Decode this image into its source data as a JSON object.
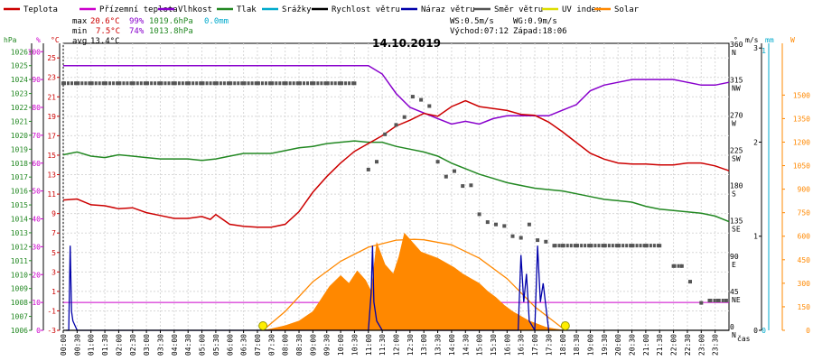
{
  "chart_data": {
    "type": "line",
    "title": "14.10.2019",
    "legend": [
      {
        "label": "Teplota",
        "color": "#cc0000"
      },
      {
        "label": "Přízemní teplota",
        "color": "#cc00cc"
      },
      {
        "label": "Vlhkost",
        "color": "#8800cc"
      },
      {
        "label": "Tlak",
        "color": "#228822"
      },
      {
        "label": "Srážky",
        "color": "#00aacc"
      },
      {
        "label": "Rychlost větru",
        "color": "#000000"
      },
      {
        "label": "Náraz větru",
        "color": "#0000aa"
      },
      {
        "label": "Směr větru",
        "color": "#555555"
      },
      {
        "label": "UV index",
        "color": "#dddd00"
      },
      {
        "label": "Solar",
        "color": "#ff8800"
      }
    ],
    "stats": {
      "max_label": "max",
      "max_temp": "20.6°C",
      "max_hum": "99%",
      "max_press": "1019.6hPa",
      "rain": "0.0mm",
      "min_label": "min",
      "min_temp": "7.5°C",
      "min_hum": "74%",
      "min_press": "1013.8hPa",
      "avg_label": "avg",
      "avg_temp": "13.4°C",
      "ws": "WS:0.5m/s",
      "wg": "WG:0.9m/s",
      "sunrise": "Východ:07:12",
      "sunset": "Západ:18:06"
    },
    "axis_units": {
      "pressure": "hPa",
      "humidity": "%",
      "temperature": "°C",
      "wind_dir": "°",
      "wind_speed": "m/s",
      "rain": "mm",
      "solar": "W",
      "x": "čas"
    },
    "pressure_ticks": [
      1006,
      1007,
      1008,
      1009,
      1010,
      1011,
      1012,
      1013,
      1014,
      1015,
      1016,
      1017,
      1018,
      1019,
      1020,
      1021,
      1022,
      1023,
      1024,
      1025,
      1026
    ],
    "humidity_ticks": [
      0,
      10,
      20,
      30,
      40,
      50,
      60,
      70,
      80,
      90,
      100
    ],
    "temp_ticks": [
      -3,
      -1,
      1,
      3,
      5,
      7,
      9,
      11,
      13,
      15,
      17,
      19,
      21,
      23,
      25
    ],
    "dir_ticks": [
      {
        "v": 0,
        "deg": "0",
        "label": "N"
      },
      {
        "v": 45,
        "deg": "45",
        "label": "NE"
      },
      {
        "v": 90,
        "deg": "90",
        "label": "E"
      },
      {
        "v": 135,
        "deg": "135",
        "label": "SE"
      },
      {
        "v": 180,
        "deg": "180",
        "label": "S"
      },
      {
        "v": 225,
        "deg": "225",
        "label": "SW"
      },
      {
        "v": 270,
        "deg": "270",
        "label": "W"
      },
      {
        "v": 315,
        "deg": "315",
        "label": "NW"
      },
      {
        "v": 360,
        "deg": "360",
        "label": "N"
      }
    ],
    "speed_ticks": [
      0,
      1,
      2,
      3
    ],
    "rain_ticks": [
      0,
      1
    ],
    "solar_ticks": [
      0,
      150,
      300,
      450,
      600,
      750,
      900,
      1050,
      1200,
      1350,
      1500
    ],
    "x_ticks": [
      "00:00",
      "00:30",
      "01:00",
      "01:30",
      "02:00",
      "02:30",
      "03:00",
      "03:30",
      "04:00",
      "04:30",
      "05:00",
      "05:30",
      "06:00",
      "06:30",
      "07:00",
      "07:30",
      "08:00",
      "08:30",
      "09:00",
      "09:30",
      "10:00",
      "10:30",
      "11:00",
      "11:30",
      "12:00",
      "12:30",
      "13:00",
      "13:30",
      "14:00",
      "14:30",
      "15:00",
      "15:30",
      "16:00",
      "16:30",
      "17:00",
      "17:30",
      "18:00",
      "18:30",
      "19:00",
      "19:30",
      "20:00",
      "20:30",
      "21:00",
      "21:30",
      "22:00",
      "22:30",
      "23:00",
      "23:30"
    ],
    "ranges": {
      "temp": [
        -3,
        26.5
      ],
      "humidity": [
        0,
        103
      ],
      "pressure": [
        1006,
        1026.6
      ],
      "dir": [
        0,
        366
      ],
      "speed": [
        0,
        3.05
      ],
      "solar": [
        0,
        1830
      ],
      "x_hours": [
        0,
        24
      ]
    },
    "sun_markers": [
      7.2,
      18.1
    ],
    "series": [
      {
        "name": "Teplota",
        "color": "#cc0000",
        "x": [
          0,
          0.5,
          1,
          1.5,
          2,
          2.5,
          3,
          3.5,
          4,
          4.5,
          5,
          5.3,
          5.5,
          6,
          6.5,
          7,
          7.5,
          8,
          8.5,
          9,
          9.5,
          10,
          10.5,
          11,
          11.5,
          12,
          12.5,
          13,
          13.5,
          14,
          14.5,
          15,
          15.5,
          16,
          16.5,
          17,
          17.5,
          18,
          18.5,
          19,
          19.5,
          20,
          20.5,
          21,
          21.5,
          22,
          22.5,
          23,
          23.5,
          24
        ],
        "y": [
          10.4,
          10.5,
          9.9,
          9.8,
          9.5,
          9.6,
          9.1,
          8.8,
          8.5,
          8.5,
          8.7,
          8.4,
          8.9,
          7.9,
          7.7,
          7.6,
          7.6,
          7.9,
          9.2,
          11.2,
          12.8,
          14.2,
          15.4,
          16.2,
          17.0,
          18.0,
          18.6,
          19.3,
          19.0,
          20.0,
          20.6,
          20.0,
          19.8,
          19.6,
          19.2,
          19.1,
          18.4,
          17.4,
          16.3,
          15.2,
          14.6,
          14.2,
          14.1,
          14.1,
          14.0,
          14.0,
          14.2,
          14.2,
          13.9,
          13.4
        ]
      },
      {
        "name": "Vlhkost",
        "color": "#8800cc",
        "x": [
          0,
          1,
          2,
          3,
          4,
          5,
          6,
          7,
          8,
          9,
          10,
          11,
          11.5,
          12,
          12.5,
          13,
          13.5,
          14,
          14.5,
          15,
          15.5,
          16,
          16.5,
          17,
          17.5,
          18,
          18.5,
          19,
          19.5,
          20,
          20.5,
          21,
          21.5,
          22,
          22.5,
          23,
          23.5,
          24
        ],
        "y": [
          95,
          95,
          95,
          95,
          95,
          95,
          95,
          95,
          95,
          95,
          95,
          95,
          92,
          85,
          80,
          78,
          76,
          74,
          75,
          74,
          76,
          77,
          77,
          77,
          77,
          79,
          81,
          86,
          88,
          89,
          90,
          90,
          90,
          90,
          89,
          88,
          88,
          89
        ]
      },
      {
        "name": "Tlak",
        "color": "#228822",
        "x": [
          0,
          0.5,
          1,
          1.5,
          2,
          2.5,
          3,
          3.5,
          4,
          4.5,
          5,
          5.5,
          6,
          6.5,
          7,
          7.5,
          8,
          8.5,
          9,
          9.5,
          10,
          10.5,
          11,
          11.5,
          12,
          12.5,
          13,
          13.5,
          14,
          14.5,
          15,
          15.5,
          16,
          16.5,
          17,
          17.5,
          18,
          18.5,
          19,
          19.5,
          20,
          20.5,
          21,
          21.5,
          22,
          22.5,
          23,
          23.5,
          24
        ],
        "y": [
          1018.6,
          1018.8,
          1018.5,
          1018.4,
          1018.6,
          1018.5,
          1018.4,
          1018.3,
          1018.3,
          1018.3,
          1018.2,
          1018.3,
          1018.5,
          1018.7,
          1018.7,
          1018.7,
          1018.9,
          1019.1,
          1019.2,
          1019.4,
          1019.5,
          1019.6,
          1019.5,
          1019.5,
          1019.2,
          1019.0,
          1018.8,
          1018.5,
          1018.0,
          1017.6,
          1017.2,
          1016.9,
          1016.6,
          1016.4,
          1016.2,
          1016.1,
          1016.0,
          1015.8,
          1015.6,
          1015.4,
          1015.3,
          1015.2,
          1014.9,
          1014.7,
          1014.6,
          1014.5,
          1014.4,
          1014.2,
          1013.8
        ]
      },
      {
        "name": "Směr větru",
        "color": "#555555",
        "x": [
          0,
          0.5,
          1,
          1.5,
          2,
          2.5,
          3,
          3.5,
          4,
          4.5,
          5,
          5.5,
          6,
          6.5,
          7,
          7.5,
          8,
          8.5,
          9,
          9.5,
          10,
          10.5,
          11,
          11.3,
          11.6,
          12,
          12.3,
          12.6,
          12.9,
          13.2,
          13.5,
          13.8,
          14.1,
          14.4,
          14.7,
          15,
          15.3,
          15.6,
          15.9,
          16.2,
          16.5,
          16.8,
          17.1,
          17.4,
          17.7,
          18,
          18.5,
          19,
          19.5,
          20,
          20.5,
          21,
          21.5,
          22,
          22.3,
          22.6,
          23,
          23.3,
          23.6,
          23.9
        ],
        "y": [
          315,
          315,
          315,
          315,
          315,
          315,
          315,
          315,
          315,
          315,
          315,
          315,
          315,
          315,
          315,
          315,
          315,
          315,
          315,
          315,
          315,
          315,
          205,
          215,
          250,
          262,
          272,
          298,
          294,
          286,
          215,
          196,
          203,
          184,
          185,
          148,
          138,
          135,
          133,
          120,
          118,
          135,
          115,
          113,
          108,
          108,
          108,
          108,
          108,
          108,
          108,
          108,
          108,
          82,
          82,
          62,
          35,
          38,
          38,
          38
        ]
      },
      {
        "name": "Náraz větru",
        "color": "#0000aa",
        "x": [
          0.1,
          0.2,
          0.25,
          0.3,
          0.35,
          0.5,
          11.0,
          11.1,
          11.15,
          11.2,
          11.3,
          11.5,
          16.4,
          16.5,
          16.6,
          16.7,
          16.8,
          17.0,
          17.1,
          17.2,
          17.3,
          17.5
        ],
        "y": [
          0,
          0,
          0.9,
          0.2,
          0.1,
          0,
          0,
          0.4,
          0.9,
          0.3,
          0.1,
          0,
          0,
          0.8,
          0.3,
          0.6,
          0.1,
          0,
          0.9,
          0.3,
          0.5,
          0
        ]
      },
      {
        "name": "Rychlost větru",
        "color": "#000000",
        "x": [
          0,
          24
        ],
        "y": [
          0,
          0
        ]
      },
      {
        "name": "Solar",
        "color": "#ff8800",
        "x": [
          7.2,
          7.5,
          8,
          8.5,
          9,
          9.3,
          9.6,
          10,
          10.3,
          10.6,
          10.9,
          11.1,
          11.3,
          11.6,
          11.9,
          12.1,
          12.3,
          12.6,
          12.9,
          13.2,
          13.5,
          13.8,
          14.1,
          14.4,
          14.7,
          15,
          15.3,
          15.6,
          15.9,
          16.2,
          16.5,
          16.8,
          17.1,
          17.4,
          17.7,
          18.1
        ],
        "y": [
          0,
          10,
          30,
          60,
          120,
          200,
          280,
          350,
          300,
          380,
          320,
          250,
          560,
          420,
          360,
          470,
          620,
          560,
          500,
          480,
          460,
          430,
          400,
          360,
          330,
          300,
          250,
          210,
          160,
          120,
          90,
          60,
          40,
          20,
          10,
          0
        ]
      },
      {
        "name": "Solar max",
        "color": "#ff8800",
        "x": [
          7.2,
          8,
          9,
          10,
          11,
          12,
          12.65,
          13,
          14,
          15,
          16,
          17,
          18.1
        ],
        "y": [
          0,
          120,
          310,
          440,
          530,
          575,
          580,
          577,
          545,
          460,
          330,
          150,
          0
        ]
      }
    ]
  }
}
